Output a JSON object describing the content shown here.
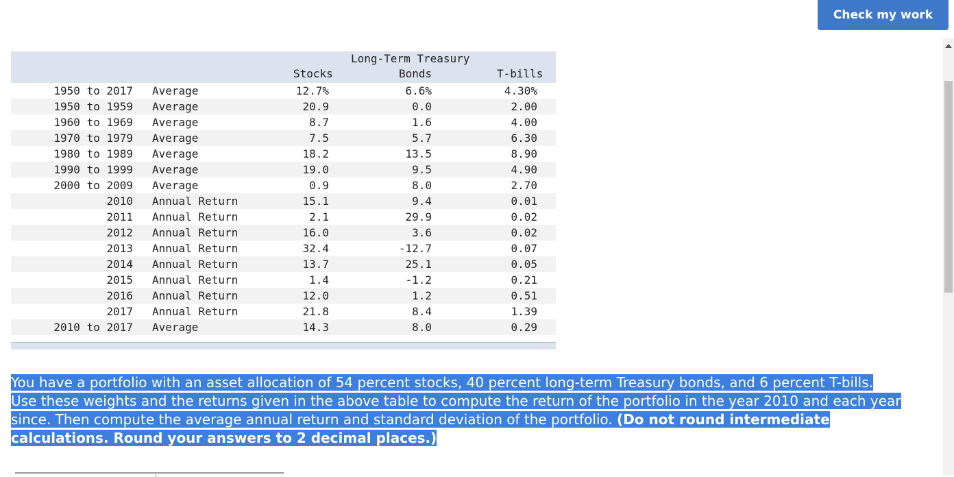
{
  "toolbar": {
    "check_label": "Check my work"
  },
  "table": {
    "headers": {
      "stocks": "Stocks",
      "bonds_line1": "Long-Term Treasury",
      "bonds_line2": "Bonds",
      "tbills": "T-bills"
    },
    "rows": [
      {
        "period": "1950 to 2017",
        "desc": "Average",
        "stocks": "12.7%",
        "bonds": "6.6%",
        "tbills": "4.30%"
      },
      {
        "period": "1950 to 1959",
        "desc": "Average",
        "stocks": "20.9",
        "bonds": "0.0",
        "tbills": "2.00"
      },
      {
        "period": "1960 to 1969",
        "desc": "Average",
        "stocks": "8.7",
        "bonds": "1.6",
        "tbills": "4.00"
      },
      {
        "period": "1970 to 1979",
        "desc": "Average",
        "stocks": "7.5",
        "bonds": "5.7",
        "tbills": "6.30"
      },
      {
        "period": "1980 to 1989",
        "desc": "Average",
        "stocks": "18.2",
        "bonds": "13.5",
        "tbills": "8.90"
      },
      {
        "period": "1990 to 1999",
        "desc": "Average",
        "stocks": "19.0",
        "bonds": "9.5",
        "tbills": "4.90"
      },
      {
        "period": "2000 to 2009",
        "desc": "Average",
        "stocks": "0.9",
        "bonds": "8.0",
        "tbills": "2.70"
      },
      {
        "period": "2010",
        "desc": "Annual Return",
        "stocks": "15.1",
        "bonds": "9.4",
        "tbills": "0.01"
      },
      {
        "period": "2011",
        "desc": "Annual Return",
        "stocks": "2.1",
        "bonds": "29.9",
        "tbills": "0.02"
      },
      {
        "period": "2012",
        "desc": "Annual Return",
        "stocks": "16.0",
        "bonds": "3.6",
        "tbills": "0.02"
      },
      {
        "period": "2013",
        "desc": "Annual Return",
        "stocks": "32.4",
        "bonds": "-12.7",
        "tbills": "0.07"
      },
      {
        "period": "2014",
        "desc": "Annual Return",
        "stocks": "13.7",
        "bonds": "25.1",
        "tbills": "0.05"
      },
      {
        "period": "2015",
        "desc": "Annual Return",
        "stocks": "1.4",
        "bonds": "-1.2",
        "tbills": "0.21"
      },
      {
        "period": "2016",
        "desc": "Annual Return",
        "stocks": "12.0",
        "bonds": "1.2",
        "tbills": "0.51"
      },
      {
        "period": "2017",
        "desc": "Annual Return",
        "stocks": "21.8",
        "bonds": "8.4",
        "tbills": "1.39"
      },
      {
        "period": "2010 to 2017",
        "desc": "Average",
        "stocks": "14.3",
        "bonds": "8.0",
        "tbills": "0.29"
      }
    ]
  },
  "question": {
    "line1": "You have a portfolio with an asset allocation of 54 percent stocks, 40 percent long-term Treasury bonds, and 6 percent T-bills.",
    "line2": "Use these weights and the returns given in the above table to compute the return of the portfolio in the year 2010 and each year",
    "line3": "since. Then compute the average annual return and standard deviation of the portfolio.",
    "bold_line3": "(Do not round intermediate",
    "bold_line4": "calculations. Round your answers to 2 decimal places.)"
  },
  "colors": {
    "button": "#3f78c8",
    "highlight": "#3c7fde",
    "table_header": "#dce2ee",
    "row_alt": "#f2f2f2"
  }
}
